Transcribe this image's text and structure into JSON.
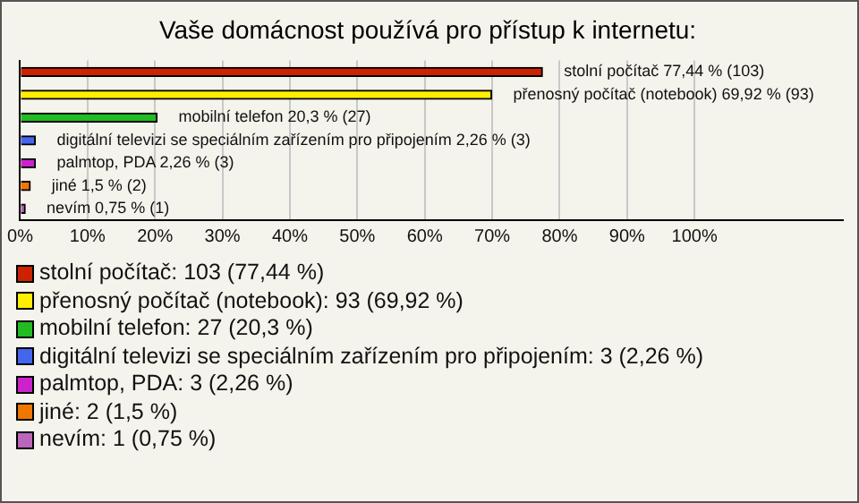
{
  "chart_data": {
    "type": "bar",
    "orientation": "horizontal",
    "title": "Vaše domácnost používá pro přístup k internetu:",
    "categories": [
      null,
      null,
      null,
      null,
      null,
      null,
      null
    ],
    "values": [
      77.44,
      69.92,
      20.3,
      2.26,
      2.26,
      1.5,
      0.75
    ],
    "colors": [
      "#cc2200",
      "#ffee00",
      "#22bb22",
      "#4466ee",
      "#cc22cc",
      "#ee7700",
      "#bb66bb"
    ],
    "value_labels": [
      "stolní počítač 77,44 % (103)",
      "přenosný počítač (notebook) 69,92 % (93)",
      "mobilní telefon 20,3 % (27)",
      "digitální televizi se speciálním zařízením pro připojením 2,26 % (3)",
      "palmtop, PDA 2,26 % (3)",
      "jiné 1,5 % (2)",
      "nevím 0,75 % (1)"
    ],
    "xlim": [
      0,
      122
    ],
    "xticks": [
      {
        "value": 0,
        "label": "0%"
      },
      {
        "value": 10,
        "label": "10%"
      },
      {
        "value": 20,
        "label": "20%"
      },
      {
        "value": 30,
        "label": "30%"
      },
      {
        "value": 40,
        "label": "40%"
      },
      {
        "value": 50,
        "label": "50%"
      },
      {
        "value": 60,
        "label": "60%"
      },
      {
        "value": 70,
        "label": "70%"
      },
      {
        "value": 80,
        "label": "80%"
      },
      {
        "value": 90,
        "label": "90%"
      },
      {
        "value": 100,
        "label": "100%"
      }
    ],
    "grid": "x",
    "tick_labels": "x",
    "annotations": [
      "stolní počítač: 103 (77,44 %)",
      "přenosný počítač (notebook): 93 (69,92 %)",
      "mobilní telefon: 27 (20,3 %)",
      "digitální televizi se speciálním zařízením pro připojením: 3 (2,26 %)",
      "palmtop, PDA: 3 (2,26 %)",
      "jiné: 2 (1,5 %)",
      "nevím: 1 (0,75 %)"
    ]
  }
}
